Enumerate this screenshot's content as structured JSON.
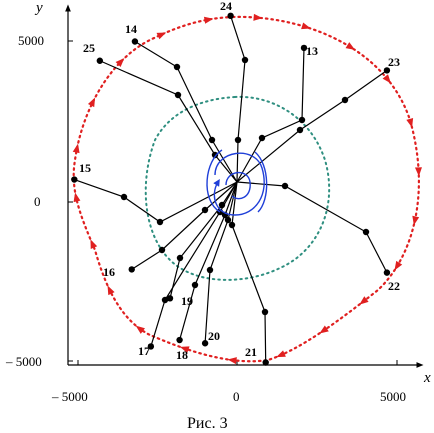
{
  "caption": "Рис. 3",
  "axes": {
    "x_name": "x",
    "y_name": "y"
  },
  "ticks": {
    "x": [
      {
        "value": -5000,
        "label": "– 5000"
      },
      {
        "value": 0,
        "label": "0"
      },
      {
        "value": 5000,
        "label": "5000"
      }
    ],
    "y": [
      {
        "value": 5000,
        "label": "5000"
      },
      {
        "value": 0,
        "label": "0"
      },
      {
        "value": -5000,
        "label": "– 5000"
      }
    ]
  },
  "colors": {
    "trajectory": "#e02020",
    "inner_circle": "#2f8f80",
    "vortex": "#1f3fd8",
    "links": "#000000"
  },
  "nodes": [
    {
      "id": "13",
      "x": 2100,
      "y": 4800
    },
    {
      "id": "14",
      "x": -3200,
      "y": 5000
    },
    {
      "id": "15",
      "x": -5100,
      "y": 700
    },
    {
      "id": "16",
      "x": -3300,
      "y": -2100
    },
    {
      "id": "17",
      "x": -2700,
      "y": -4500
    },
    {
      "id": "18",
      "x": -1800,
      "y": -4300
    },
    {
      "id": "19",
      "x": -2100,
      "y": -3000
    },
    {
      "id": "20",
      "x": -1000,
      "y": -4400
    },
    {
      "id": "21",
      "x": 900,
      "y": -5000
    },
    {
      "id": "22",
      "x": 4700,
      "y": -2200
    },
    {
      "id": "23",
      "x": 4700,
      "y": 4100
    },
    {
      "id": "24",
      "x": -200,
      "y": 5800
    },
    {
      "id": "25",
      "x": -4300,
      "y": 4400
    }
  ]
}
